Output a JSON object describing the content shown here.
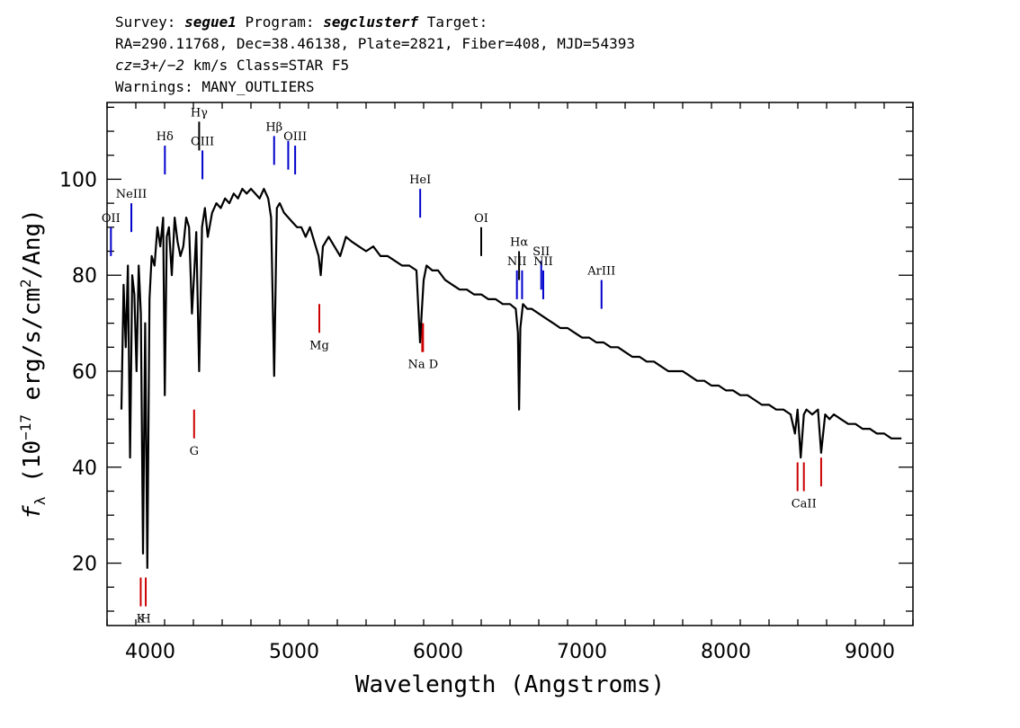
{
  "header": {
    "line1": {
      "pre": "Survey: ",
      "survey": "segue1",
      "mid": " Program: ",
      "program": "segclusterf",
      "post": " Target:"
    },
    "line2": "RA=290.11768, Dec=38.46138, Plate=2821, Fiber=408, MJD=54393",
    "line3": {
      "cz": "cz=3+/−2",
      "post": " km/s Class=STAR F5"
    },
    "line4": "Warnings: MANY_OUTLIERS"
  },
  "chart_data": {
    "type": "line",
    "xlabel": "Wavelength (Angstroms)",
    "ylabel_parts": {
      "f": "f",
      "sub": "λ",
      "a": " (10",
      "exp1": "−17",
      "b": " erg/s/cm",
      "exp2": "2",
      "c": "/Ang)"
    },
    "xlim": [
      3700,
      9300
    ],
    "ylim": [
      7,
      116
    ],
    "xticks": [
      4000,
      5000,
      6000,
      7000,
      8000,
      9000
    ],
    "xtick_labels": [
      "4000",
      "5000",
      "6000",
      "7000",
      "8000",
      "9000"
    ],
    "yticks": [
      20,
      40,
      60,
      80,
      100
    ],
    "ytick_labels": [
      "20",
      "40",
      "60",
      "80",
      "100"
    ],
    "grid": false,
    "series": [
      {
        "x": [
          3800,
          3815,
          3830,
          3845,
          3860,
          3875,
          3890,
          3905,
          3920,
          3935,
          3950,
          3965,
          3980,
          3995,
          4010,
          4030,
          4050,
          4070,
          4090,
          4101,
          4115,
          4130,
          4150,
          4170,
          4190,
          4210,
          4230,
          4250,
          4270,
          4290,
          4305,
          4320,
          4340,
          4360,
          4380,
          4400,
          4430,
          4460,
          4490,
          4520,
          4550,
          4580,
          4610,
          4640,
          4670,
          4700,
          4730,
          4760,
          4790,
          4820,
          4840,
          4861,
          4880,
          4900,
          4930,
          4960,
          4990,
          5020,
          5050,
          5080,
          5110,
          5140,
          5170,
          5185,
          5200,
          5240,
          5280,
          5320,
          5360,
          5400,
          5450,
          5500,
          5550,
          5600,
          5650,
          5700,
          5750,
          5800,
          5850,
          5875,
          5890,
          5900,
          5920,
          5960,
          6000,
          6050,
          6100,
          6150,
          6200,
          6250,
          6300,
          6350,
          6400,
          6450,
          6500,
          6540,
          6555,
          6563,
          6572,
          6590,
          6620,
          6650,
          6700,
          6750,
          6800,
          6850,
          6900,
          6950,
          7000,
          7050,
          7100,
          7150,
          7200,
          7250,
          7300,
          7350,
          7400,
          7450,
          7500,
          7550,
          7600,
          7650,
          7700,
          7750,
          7800,
          7850,
          7900,
          7950,
          8000,
          8050,
          8100,
          8150,
          8200,
          8250,
          8300,
          8350,
          8400,
          8450,
          8480,
          8498,
          8520,
          8542,
          8560,
          8600,
          8640,
          8662,
          8690,
          8720,
          8750,
          8800,
          8850,
          8900,
          8950,
          9000,
          9050,
          9100,
          9150,
          9200,
          9220
        ],
        "y": [
          52,
          78,
          65,
          82,
          42,
          80,
          76,
          60,
          82,
          72,
          22,
          70,
          19,
          75,
          84,
          82,
          90,
          86,
          92,
          55,
          88,
          90,
          80,
          92,
          87,
          84,
          86,
          92,
          90,
          72,
          80,
          89,
          60,
          90,
          94,
          88,
          93,
          95,
          94,
          96,
          95,
          97,
          96,
          98,
          97,
          98,
          97,
          96,
          98,
          96,
          92,
          59,
          94,
          95,
          93,
          92,
          91,
          90,
          90,
          88,
          90,
          87,
          84,
          80,
          86,
          88,
          86,
          84,
          88,
          87,
          86,
          85,
          86,
          84,
          84,
          83,
          82,
          82,
          81,
          66,
          74,
          79,
          82,
          81,
          81,
          79,
          78,
          77,
          77,
          76,
          76,
          75,
          75,
          74,
          74,
          73,
          68,
          52,
          69,
          74,
          73,
          73,
          72,
          71,
          70,
          69,
          69,
          68,
          67,
          67,
          66,
          66,
          65,
          65,
          64,
          63,
          63,
          62,
          62,
          61,
          60,
          60,
          60,
          59,
          58,
          58,
          57,
          57,
          56,
          56,
          55,
          55,
          54,
          53,
          53,
          52,
          52,
          51,
          47,
          52,
          42,
          51,
          52,
          51,
          52,
          43,
          51,
          50,
          51,
          50,
          49,
          49,
          48,
          48,
          47,
          47,
          46,
          46,
          46
        ]
      }
    ],
    "line_markers": [
      {
        "label": "OII",
        "x": 3727,
        "y_bottom": 84,
        "y_top": 90,
        "color": "#0000cc",
        "label_side": "top"
      },
      {
        "label": "NeIII",
        "x": 3869,
        "y_bottom": 89,
        "y_top": 95,
        "color": "#0000cc",
        "label_side": "top"
      },
      {
        "label": "Hδ",
        "x": 4102,
        "y_bottom": 101,
        "y_top": 107,
        "color": "#0000cc",
        "label_side": "top"
      },
      {
        "label": "Hγ",
        "x": 4340,
        "y_bottom": 106,
        "y_top": 112,
        "color": "#000000",
        "label_side": "top"
      },
      {
        "label": "OIII",
        "x": 4363,
        "y_bottom": 100,
        "y_top": 106,
        "color": "#0000cc",
        "label_side": "top"
      },
      {
        "label": "Hβ",
        "x": 4861,
        "y_bottom": 103,
        "y_top": 109,
        "color": "#0000cc",
        "label_side": "top"
      },
      {
        "label": "OIII",
        "x": 4959,
        "y_bottom": 102,
        "y_top": 108,
        "color": "#0000cc",
        "label_side": "none"
      },
      {
        "label": "OIII",
        "x": 5007,
        "y_bottom": 101,
        "y_top": 107,
        "color": "#0000cc",
        "label_side": "top"
      },
      {
        "label": "HeI",
        "x": 5876,
        "y_bottom": 92,
        "y_top": 98,
        "color": "#0000cc",
        "label_side": "top"
      },
      {
        "label": "OI",
        "x": 6300,
        "y_bottom": 84,
        "y_top": 90,
        "color": "#000000",
        "label_side": "top"
      },
      {
        "label": "NII",
        "x": 6548,
        "y_bottom": 75,
        "y_top": 81,
        "color": "#0000cc",
        "label_side": "top"
      },
      {
        "label": "Hα",
        "x": 6563,
        "y_bottom": 79,
        "y_top": 85,
        "color": "#000000",
        "label_side": "top"
      },
      {
        "label": "NII",
        "x": 6584,
        "y_bottom": 75,
        "y_top": 81,
        "color": "#0000cc",
        "label_side": "none"
      },
      {
        "label": "SII",
        "x": 6717,
        "y_bottom": 77,
        "y_top": 83,
        "color": "#0000cc",
        "label_side": "top"
      },
      {
        "label": "NII",
        "x": 6731,
        "y_bottom": 75,
        "y_top": 81,
        "color": "#0000cc",
        "label_side": "top"
      },
      {
        "label": "ArIII",
        "x": 7136,
        "y_bottom": 73,
        "y_top": 79,
        "color": "#0000cc",
        "label_side": "top"
      },
      {
        "label": "K",
        "x": 3934,
        "y_bottom": 11,
        "y_top": 17,
        "color": "#cc0000",
        "label_side": "bottom"
      },
      {
        "label": "H",
        "x": 3969,
        "y_bottom": 11,
        "y_top": 17,
        "color": "#cc0000",
        "label_side": "bottom"
      },
      {
        "label": "G",
        "x": 4305,
        "y_bottom": 46,
        "y_top": 52,
        "color": "#cc0000",
        "label_side": "bottom"
      },
      {
        "label": "Mg",
        "x": 5175,
        "y_bottom": 68,
        "y_top": 74,
        "color": "#cc0000",
        "label_side": "bottom"
      },
      {
        "label": "Na",
        "x": 5890,
        "y_bottom": 64,
        "y_top": 70,
        "color": "#cc0000",
        "label_side": "none"
      },
      {
        "label": "Na D",
        "x": 5896,
        "y_bottom": 64,
        "y_top": 70,
        "color": "#cc0000",
        "label_side": "bottom"
      },
      {
        "label": "CaII",
        "x": 8498,
        "y_bottom": 35,
        "y_top": 41,
        "color": "#cc0000",
        "label_side": "none"
      },
      {
        "label": "CaII",
        "x": 8542,
        "y_bottom": 35,
        "y_top": 41,
        "color": "#cc0000",
        "label_side": "bottom"
      },
      {
        "label": "CaII",
        "x": 8662,
        "y_bottom": 36,
        "y_top": 42,
        "color": "#cc0000",
        "label_side": "none"
      }
    ]
  }
}
